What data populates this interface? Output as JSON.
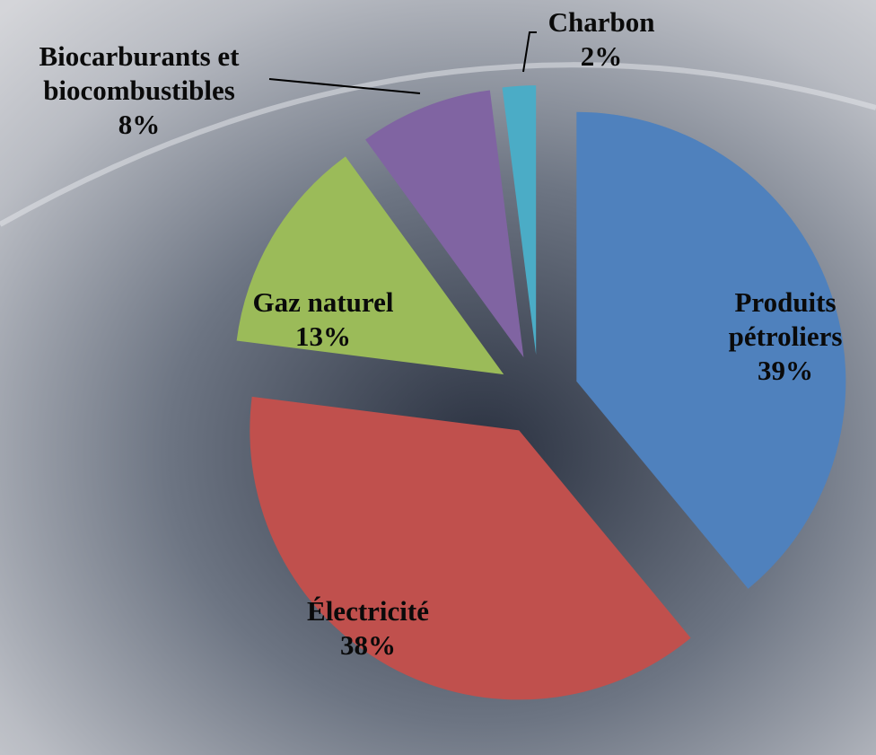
{
  "chart_data": {
    "type": "pie",
    "categories": [
      "Produits pétroliers",
      "Électricité",
      "Gaz naturel",
      "Biocarburants et biocombustibles",
      "Charbon"
    ],
    "values": [
      39,
      38,
      13,
      8,
      2
    ],
    "value_labels": [
      "39%",
      "38%",
      "13%",
      "8%",
      "2%"
    ],
    "colors": [
      "#4f81bd",
      "#c0504d",
      "#9bbb59",
      "#8064a2",
      "#4bacc6"
    ]
  }
}
